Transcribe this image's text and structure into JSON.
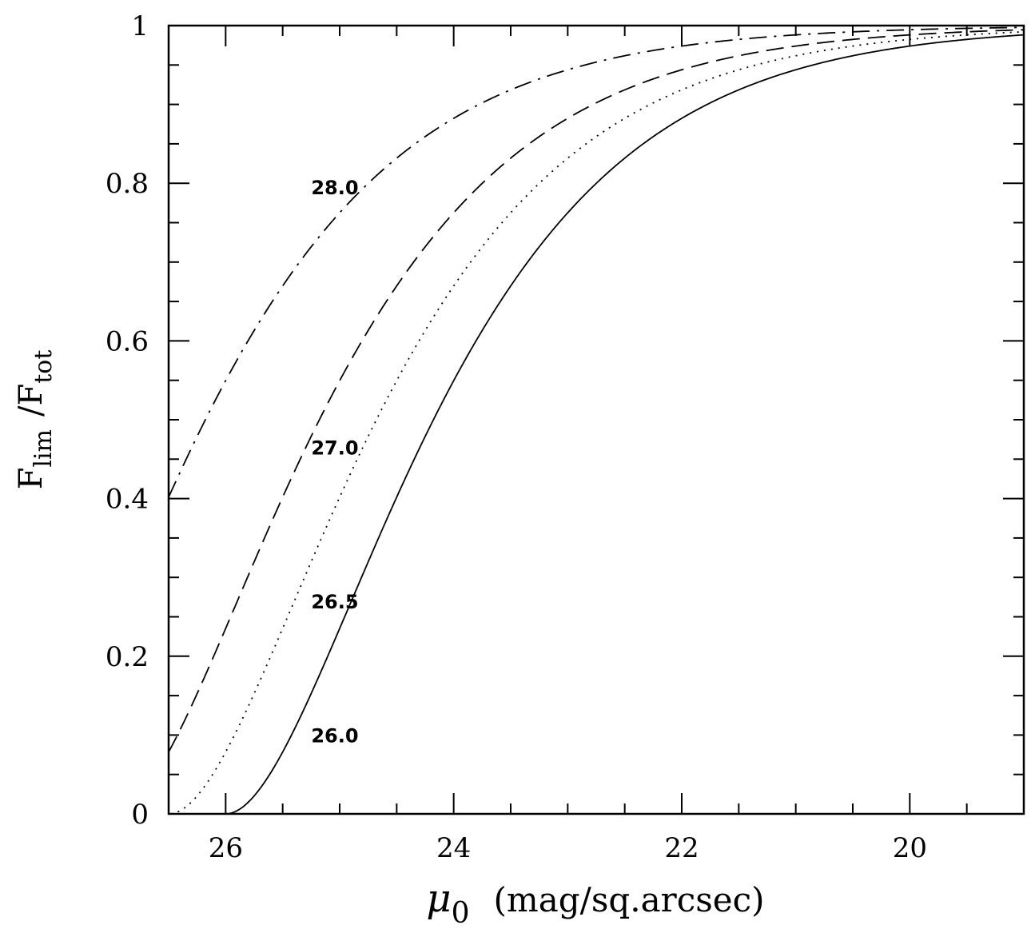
{
  "chart_data": {
    "type": "line",
    "title": "",
    "xlabel": {
      "symbol": "μ",
      "subscript": "0",
      "units": "(mag/sq.arcsec)"
    },
    "ylabel": {
      "num": "F",
      "num_sub": "lim",
      "den": "/F",
      "den_sub": "tot"
    },
    "xlim": [
      26.5,
      19
    ],
    "ylim": [
      0,
      1
    ],
    "x_reversed": true,
    "grid": false,
    "legend": "none",
    "x_ticks": [
      26,
      24,
      22,
      20
    ],
    "x_tick_labels": [
      "26",
      "24",
      "22",
      "20"
    ],
    "y_ticks": [
      0,
      0.2,
      0.4,
      0.6,
      0.8,
      1
    ],
    "y_tick_labels": [
      "0",
      "0.2",
      "0.4",
      "0.6",
      "0.8",
      "1"
    ],
    "series": [
      {
        "name": "26.0",
        "mu_lim": 26.0,
        "style": "solid",
        "label": {
          "text": "26.0",
          "x": 25.25,
          "y": 0.1
        }
      },
      {
        "name": "26.5",
        "mu_lim": 26.5,
        "style": "dotted",
        "label": {
          "text": "26.5",
          "x": 25.25,
          "y": 0.27
        }
      },
      {
        "name": "27.0",
        "mu_lim": 27.0,
        "style": "dashed",
        "label": {
          "text": "27.0",
          "x": 25.25,
          "y": 0.465
        }
      },
      {
        "name": "28.0",
        "mu_lim": 28.0,
        "style": "dashdot",
        "label": {
          "text": "28.0",
          "x": 25.25,
          "y": 0.795
        }
      }
    ]
  }
}
